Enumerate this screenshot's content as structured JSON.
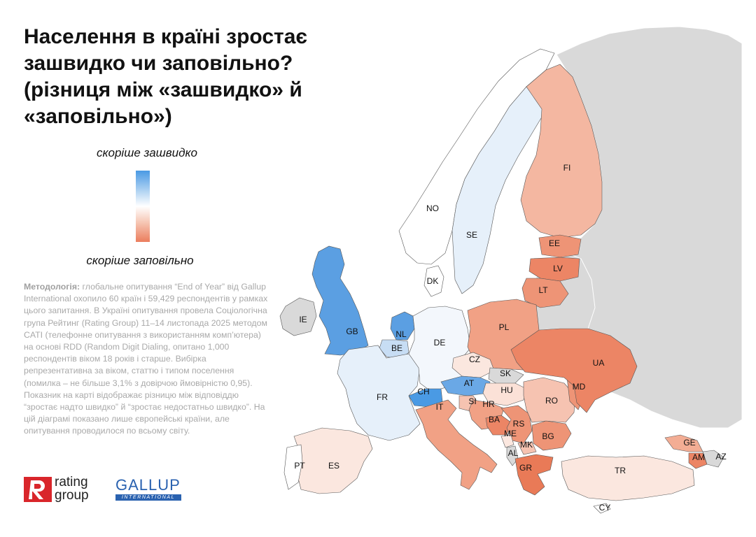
{
  "title": "Населення в країні зростає зашвидко чи заповільно? (різниця між «зашвидко» й «заповільно»)",
  "legend": {
    "top_label": "скоріше зашвидко",
    "bottom_label": "скоріше заповільно",
    "color_high": "#4a9ae4",
    "color_mid": "#ffffff",
    "color_low": "#eb7d5d",
    "no_data_color": "#d9d9d9"
  },
  "methodology": {
    "label": "Методологія:",
    "text": " глобальне опитування “End of Year” від Gallup International охопило 60 країн і 59,429 респондентів у рамках цього запитання. В Україні опитування провела Соціологічна група Рейтинг (Rating Group) 11–14 листопада 2025 методом CATI (телефонне опитування з використанням комп’ютера) на основі RDD (Random Digit Dialing, опитано 1,000 респондентів віком 18 років і старше. Вибірка репрезентативна за віком, статтю і типом поселення (помилка – не більше 3,1% з довірчою ймовірністю 0,95). Показник на карті відображає різницю між відповіддю “зростає надто швидко” й “зростає недостатньо швидко”. На цій діаграмі показано лише європейські країни, але опитування проводилося по всьому світу."
  },
  "logos": {
    "rating_group_line1": "rating",
    "rating_group_line2": "group",
    "gallup_line1": "GALLUP",
    "gallup_line2": "INTERNATIONAL"
  },
  "countries": [
    {
      "code": "IE",
      "color": "#d9d9d9"
    },
    {
      "code": "GB",
      "color": "#5b9fe2"
    },
    {
      "code": "NL",
      "color": "#5b9fe2"
    },
    {
      "code": "BE",
      "color": "#c7ddf4"
    },
    {
      "code": "FR",
      "color": "#e6f0fa"
    },
    {
      "code": "DE",
      "color": "#f3f7fc"
    },
    {
      "code": "DK",
      "color": "#ffffff"
    },
    {
      "code": "NO",
      "color": "#ffffff"
    },
    {
      "code": "SE",
      "color": "#e6f0fa"
    },
    {
      "code": "FI",
      "color": "#f4b7a1"
    },
    {
      "code": "EE",
      "color": "#ee9476"
    },
    {
      "code": "LV",
      "color": "#ec8565"
    },
    {
      "code": "LT",
      "color": "#ee9476"
    },
    {
      "code": "PL",
      "color": "#f1a185"
    },
    {
      "code": "CZ",
      "color": "#fbe7df"
    },
    {
      "code": "SK",
      "color": "#d9d9d9"
    },
    {
      "code": "AT",
      "color": "#6aa8e6"
    },
    {
      "code": "CH",
      "color": "#4a9ae4"
    },
    {
      "code": "HU",
      "color": "#fbe1d7"
    },
    {
      "code": "SI",
      "color": "#f6c3b1"
    },
    {
      "code": "HR",
      "color": "#f1a185"
    },
    {
      "code": "BA",
      "color": "#ec8565"
    },
    {
      "code": "RS",
      "color": "#ee9476"
    },
    {
      "code": "ME",
      "color": "#fbe7df"
    },
    {
      "code": "AL",
      "color": "#d9d9d9"
    },
    {
      "code": "MK",
      "color": "#f6c3b1"
    },
    {
      "code": "BG",
      "color": "#ee9476"
    },
    {
      "code": "GR",
      "color": "#e97a57"
    },
    {
      "code": "RO",
      "color": "#f6c3b1"
    },
    {
      "code": "MD",
      "color": "#ee9476"
    },
    {
      "code": "UA",
      "color": "#ec8565"
    },
    {
      "code": "IT",
      "color": "#f1a185"
    },
    {
      "code": "ES",
      "color": "#fbe7df"
    },
    {
      "code": "PT",
      "color": "#ffffff"
    },
    {
      "code": "TR",
      "color": "#fbe7df"
    },
    {
      "code": "GE",
      "color": "#f3ad94"
    },
    {
      "code": "AM",
      "color": "#ec8565"
    },
    {
      "code": "AZ",
      "color": "#d9d9d9"
    },
    {
      "code": "CY",
      "color": "#ffffff"
    }
  ]
}
